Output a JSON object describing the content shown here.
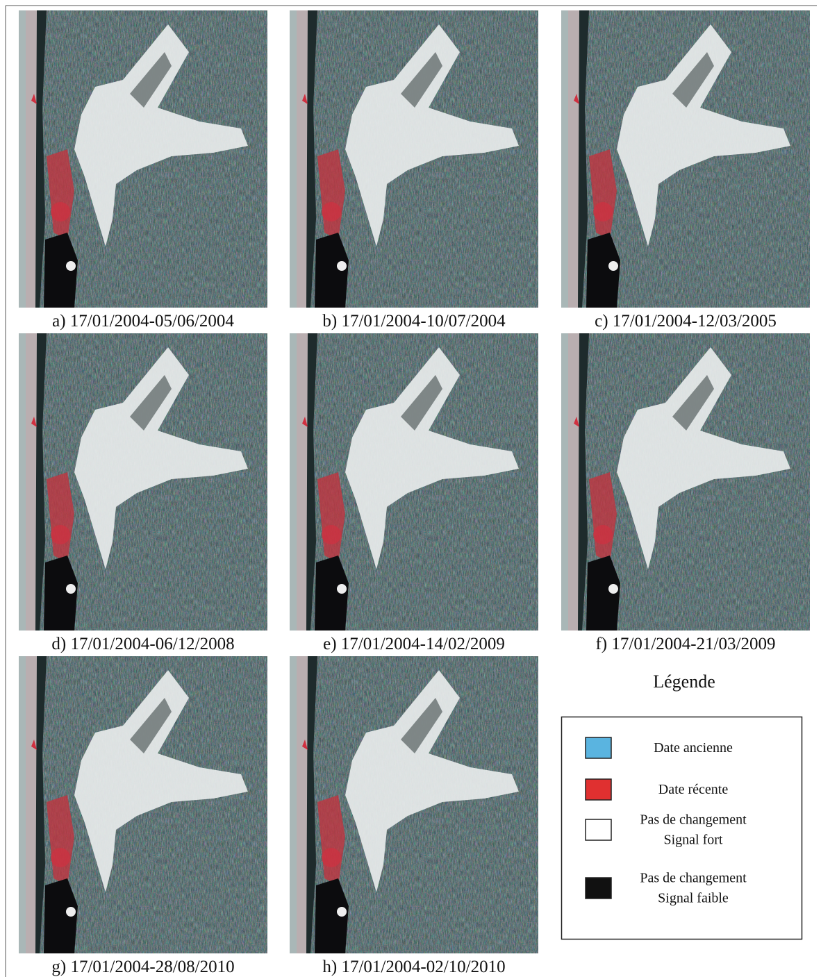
{
  "panels": [
    {
      "caption": "a) 17/01/2004-05/06/2004"
    },
    {
      "caption": "b) 17/01/2004-10/07/2004"
    },
    {
      "caption": "c) 17/01/2004-12/03/2005"
    },
    {
      "caption": "d) 17/01/2004-06/12/2008"
    },
    {
      "caption": "e) 17/01/2004-14/02/2009"
    },
    {
      "caption": "f) 17/01/2004-21/03/2009"
    },
    {
      "caption": "g) 17/01/2004-28/08/2010"
    },
    {
      "caption": "h) 17/01/2004-02/10/2010"
    }
  ],
  "legend": {
    "title": "Légende",
    "items": [
      {
        "color": "#5ab4e0",
        "lines": [
          "Date ancienne"
        ]
      },
      {
        "color": "#e03030",
        "lines": [
          "Date récente"
        ]
      },
      {
        "color": "#ffffff",
        "lines": [
          "Pas de changement",
          "Signal fort"
        ]
      },
      {
        "color": "#111111",
        "lines": [
          "Pas de changement",
          "Signal faible"
        ]
      }
    ]
  }
}
